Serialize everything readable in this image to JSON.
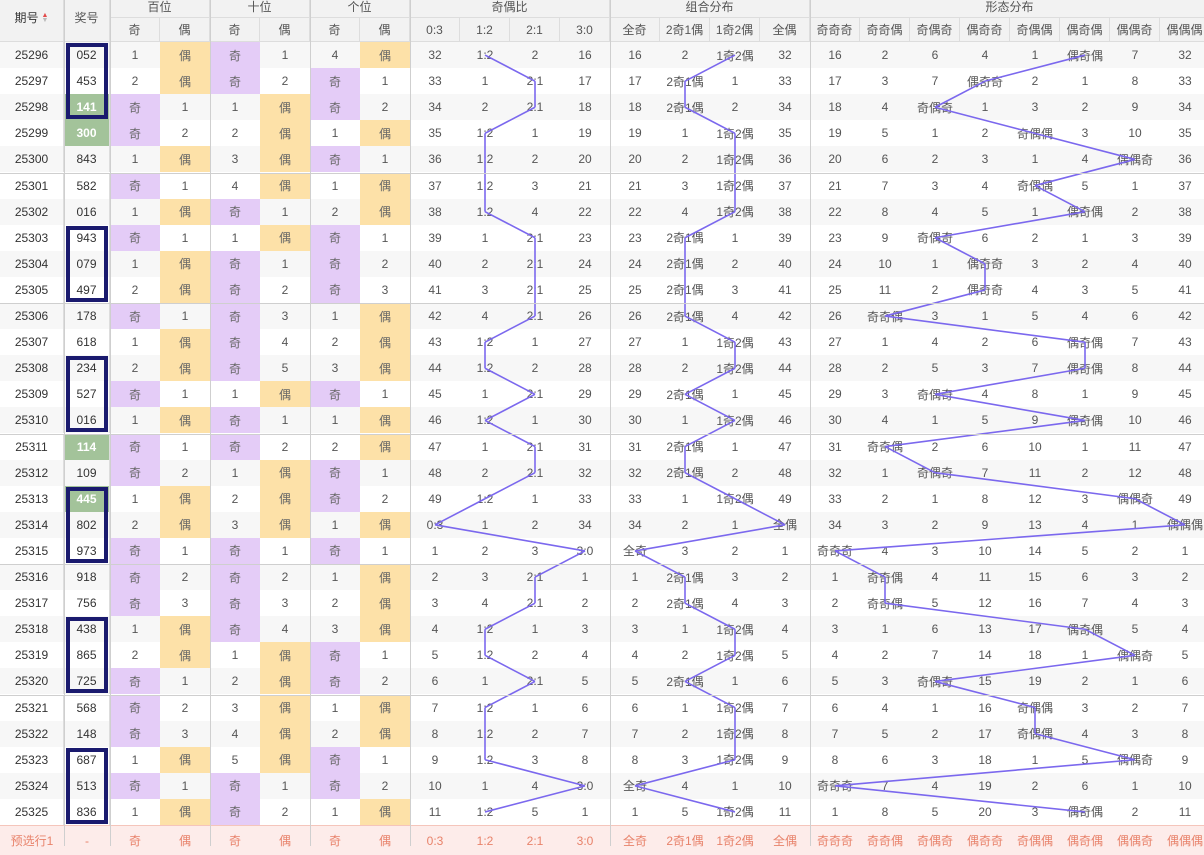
{
  "header": {
    "period": "期号",
    "award": "奖号",
    "sort_icon": "sort-up-down-icon",
    "groups": [
      "百位",
      "十位",
      "个位",
      "奇偶比",
      "组合分布",
      "形态分布"
    ],
    "sub": [
      "奇",
      "偶",
      "奇",
      "偶",
      "奇",
      "偶",
      "0:3",
      "1:2",
      "2:1",
      "3:0",
      "全奇",
      "2奇1偶",
      "1奇2偶",
      "全偶",
      "奇奇奇",
      "奇奇偶",
      "奇偶奇",
      "偶奇奇",
      "奇偶偶",
      "偶奇偶",
      "偶偶奇",
      "偶偶偶"
    ]
  },
  "colors": {
    "hl": "#7b68ee",
    "ji": "#e4ccf7",
    "ou": "#fde1a8",
    "green": "#a3c39a",
    "box": "#1a1a6e",
    "pred": "#e8826a"
  },
  "rows": [
    {
      "p": "25296",
      "n": "052",
      "c": [
        "1",
        "偶",
        "奇",
        "1",
        "4",
        "偶",
        "32",
        "1:2",
        "2",
        "16",
        "16",
        "2",
        "1奇2偶",
        "32",
        "16",
        "2",
        "6",
        "4",
        "1",
        "偶奇偶",
        "7",
        "32"
      ]
    },
    {
      "p": "25297",
      "n": "453",
      "c": [
        "2",
        "偶",
        "奇",
        "2",
        "奇",
        "1",
        "33",
        "1",
        "2:1",
        "17",
        "17",
        "2奇1偶",
        "1",
        "33",
        "17",
        "3",
        "7",
        "偶奇奇",
        "2",
        "1",
        "8",
        "33"
      ]
    },
    {
      "p": "25298",
      "n": "141",
      "c": [
        "奇",
        "1",
        "1",
        "偶",
        "奇",
        "2",
        "34",
        "2",
        "2:1",
        "18",
        "18",
        "2奇1偶",
        "2",
        "34",
        "18",
        "4",
        "奇偶奇",
        "1",
        "3",
        "2",
        "9",
        "34"
      ]
    },
    {
      "p": "25299",
      "n": "300",
      "c": [
        "奇",
        "2",
        "2",
        "偶",
        "1",
        "偶",
        "35",
        "1:2",
        "1",
        "19",
        "19",
        "1",
        "1奇2偶",
        "35",
        "19",
        "5",
        "1",
        "2",
        "奇偶偶",
        "3",
        "10",
        "35"
      ]
    },
    {
      "p": "25300",
      "n": "843",
      "c": [
        "1",
        "偶",
        "3",
        "偶",
        "奇",
        "1",
        "36",
        "1:2",
        "2",
        "20",
        "20",
        "2",
        "1奇2偶",
        "36",
        "20",
        "6",
        "2",
        "3",
        "1",
        "4",
        "偶偶奇",
        "36"
      ]
    },
    {
      "p": "25301",
      "n": "582",
      "c": [
        "奇",
        "1",
        "4",
        "偶",
        "1",
        "偶",
        "37",
        "1:2",
        "3",
        "21",
        "21",
        "3",
        "1奇2偶",
        "37",
        "21",
        "7",
        "3",
        "4",
        "奇偶偶",
        "5",
        "1",
        "37"
      ]
    },
    {
      "p": "25302",
      "n": "016",
      "c": [
        "1",
        "偶",
        "奇",
        "1",
        "2",
        "偶",
        "38",
        "1:2",
        "4",
        "22",
        "22",
        "4",
        "1奇2偶",
        "38",
        "22",
        "8",
        "4",
        "5",
        "1",
        "偶奇偶",
        "2",
        "38"
      ]
    },
    {
      "p": "25303",
      "n": "943",
      "c": [
        "奇",
        "1",
        "1",
        "偶",
        "奇",
        "1",
        "39",
        "1",
        "2:1",
        "23",
        "23",
        "2奇1偶",
        "1",
        "39",
        "23",
        "9",
        "奇偶奇",
        "6",
        "2",
        "1",
        "3",
        "39"
      ]
    },
    {
      "p": "25304",
      "n": "079",
      "c": [
        "1",
        "偶",
        "奇",
        "1",
        "奇",
        "2",
        "40",
        "2",
        "2:1",
        "24",
        "24",
        "2奇1偶",
        "2",
        "40",
        "24",
        "10",
        "1",
        "偶奇奇",
        "3",
        "2",
        "4",
        "40"
      ]
    },
    {
      "p": "25305",
      "n": "497",
      "c": [
        "2",
        "偶",
        "奇",
        "2",
        "奇",
        "3",
        "41",
        "3",
        "2:1",
        "25",
        "25",
        "2奇1偶",
        "3",
        "41",
        "25",
        "11",
        "2",
        "偶奇奇",
        "4",
        "3",
        "5",
        "41"
      ]
    },
    {
      "p": "25306",
      "n": "178",
      "c": [
        "奇",
        "1",
        "奇",
        "3",
        "1",
        "偶",
        "42",
        "4",
        "2:1",
        "26",
        "26",
        "2奇1偶",
        "4",
        "42",
        "26",
        "奇奇偶",
        "3",
        "1",
        "5",
        "4",
        "6",
        "42"
      ]
    },
    {
      "p": "25307",
      "n": "618",
      "c": [
        "1",
        "偶",
        "奇",
        "4",
        "2",
        "偶",
        "43",
        "1:2",
        "1",
        "27",
        "27",
        "1",
        "1奇2偶",
        "43",
        "27",
        "1",
        "4",
        "2",
        "6",
        "偶奇偶",
        "7",
        "43"
      ]
    },
    {
      "p": "25308",
      "n": "234",
      "c": [
        "2",
        "偶",
        "奇",
        "5",
        "3",
        "偶",
        "44",
        "1:2",
        "2",
        "28",
        "28",
        "2",
        "1奇2偶",
        "44",
        "28",
        "2",
        "5",
        "3",
        "7",
        "偶奇偶",
        "8",
        "44"
      ]
    },
    {
      "p": "25309",
      "n": "527",
      "c": [
        "奇",
        "1",
        "1",
        "偶",
        "奇",
        "1",
        "45",
        "1",
        "2:1",
        "29",
        "29",
        "2奇1偶",
        "1",
        "45",
        "29",
        "3",
        "奇偶奇",
        "4",
        "8",
        "1",
        "9",
        "45"
      ]
    },
    {
      "p": "25310",
      "n": "016",
      "c": [
        "1",
        "偶",
        "奇",
        "1",
        "1",
        "偶",
        "46",
        "1:2",
        "1",
        "30",
        "30",
        "1",
        "1奇2偶",
        "46",
        "30",
        "4",
        "1",
        "5",
        "9",
        "偶奇偶",
        "10",
        "46"
      ]
    },
    {
      "p": "25311",
      "n": "114",
      "c": [
        "奇",
        "1",
        "奇",
        "2",
        "2",
        "偶",
        "47",
        "1",
        "2:1",
        "31",
        "31",
        "2奇1偶",
        "1",
        "47",
        "31",
        "奇奇偶",
        "2",
        "6",
        "10",
        "1",
        "11",
        "47"
      ]
    },
    {
      "p": "25312",
      "n": "109",
      "c": [
        "奇",
        "2",
        "1",
        "偶",
        "奇",
        "1",
        "48",
        "2",
        "2:1",
        "32",
        "32",
        "2奇1偶",
        "2",
        "48",
        "32",
        "1",
        "奇偶奇",
        "7",
        "11",
        "2",
        "12",
        "48"
      ]
    },
    {
      "p": "25313",
      "n": "445",
      "c": [
        "1",
        "偶",
        "2",
        "偶",
        "奇",
        "2",
        "49",
        "1:2",
        "1",
        "33",
        "33",
        "1",
        "1奇2偶",
        "49",
        "33",
        "2",
        "1",
        "8",
        "12",
        "3",
        "偶偶奇",
        "49"
      ]
    },
    {
      "p": "25314",
      "n": "802",
      "c": [
        "2",
        "偶",
        "3",
        "偶",
        "1",
        "偶",
        "0:3",
        "1",
        "2",
        "34",
        "34",
        "2",
        "1",
        "全偶",
        "34",
        "3",
        "2",
        "9",
        "13",
        "4",
        "1",
        "偶偶偶"
      ]
    },
    {
      "p": "25315",
      "n": "973",
      "c": [
        "奇",
        "1",
        "奇",
        "1",
        "奇",
        "1",
        "1",
        "2",
        "3",
        "3:0",
        "全奇",
        "3",
        "2",
        "1",
        "奇奇奇",
        "4",
        "3",
        "10",
        "14",
        "5",
        "2",
        "1"
      ]
    },
    {
      "p": "25316",
      "n": "918",
      "c": [
        "奇",
        "2",
        "奇",
        "2",
        "1",
        "偶",
        "2",
        "3",
        "2:1",
        "1",
        "1",
        "2奇1偶",
        "3",
        "2",
        "1",
        "奇奇偶",
        "4",
        "11",
        "15",
        "6",
        "3",
        "2"
      ]
    },
    {
      "p": "25317",
      "n": "756",
      "c": [
        "奇",
        "3",
        "奇",
        "3",
        "2",
        "偶",
        "3",
        "4",
        "2:1",
        "2",
        "2",
        "2奇1偶",
        "4",
        "3",
        "2",
        "奇奇偶",
        "5",
        "12",
        "16",
        "7",
        "4",
        "3"
      ]
    },
    {
      "p": "25318",
      "n": "438",
      "c": [
        "1",
        "偶",
        "奇",
        "4",
        "3",
        "偶",
        "4",
        "1:2",
        "1",
        "3",
        "3",
        "1",
        "1奇2偶",
        "4",
        "3",
        "1",
        "6",
        "13",
        "17",
        "偶奇偶",
        "5",
        "4"
      ]
    },
    {
      "p": "25319",
      "n": "865",
      "c": [
        "2",
        "偶",
        "1",
        "偶",
        "奇",
        "1",
        "5",
        "1:2",
        "2",
        "4",
        "4",
        "2",
        "1奇2偶",
        "5",
        "4",
        "2",
        "7",
        "14",
        "18",
        "1",
        "偶偶奇",
        "5"
      ]
    },
    {
      "p": "25320",
      "n": "725",
      "c": [
        "奇",
        "1",
        "2",
        "偶",
        "奇",
        "2",
        "6",
        "1",
        "2:1",
        "5",
        "5",
        "2奇1偶",
        "1",
        "6",
        "5",
        "3",
        "奇偶奇",
        "15",
        "19",
        "2",
        "1",
        "6"
      ]
    },
    {
      "p": "25321",
      "n": "568",
      "c": [
        "奇",
        "2",
        "3",
        "偶",
        "1",
        "偶",
        "7",
        "1:2",
        "1",
        "6",
        "6",
        "1",
        "1奇2偶",
        "7",
        "6",
        "4",
        "1",
        "16",
        "奇偶偶",
        "3",
        "2",
        "7"
      ]
    },
    {
      "p": "25322",
      "n": "148",
      "c": [
        "奇",
        "3",
        "4",
        "偶",
        "2",
        "偶",
        "8",
        "1:2",
        "2",
        "7",
        "7",
        "2",
        "1奇2偶",
        "8",
        "7",
        "5",
        "2",
        "17",
        "奇偶偶",
        "4",
        "3",
        "8"
      ]
    },
    {
      "p": "25323",
      "n": "687",
      "c": [
        "1",
        "偶",
        "5",
        "偶",
        "奇",
        "1",
        "9",
        "1:2",
        "3",
        "8",
        "8",
        "3",
        "1奇2偶",
        "9",
        "8",
        "6",
        "3",
        "18",
        "1",
        "5",
        "偶偶奇",
        "9"
      ]
    },
    {
      "p": "25324",
      "n": "513",
      "c": [
        "奇",
        "1",
        "奇",
        "1",
        "奇",
        "2",
        "10",
        "1",
        "4",
        "3:0",
        "全奇",
        "4",
        "1",
        "10",
        "奇奇奇",
        "7",
        "4",
        "19",
        "2",
        "6",
        "1",
        "10"
      ]
    },
    {
      "p": "25325",
      "n": "836",
      "c": [
        "1",
        "偶",
        "奇",
        "2",
        "1",
        "偶",
        "11",
        "1:2",
        "5",
        "1",
        "1",
        "5",
        "1奇2偶",
        "11",
        "1",
        "8",
        "5",
        "20",
        "3",
        "偶奇偶",
        "2",
        "11"
      ]
    }
  ],
  "predict": {
    "label": "预选行1",
    "award": "-",
    "cells": [
      "奇",
      "偶",
      "奇",
      "偶",
      "奇",
      "偶",
      "0:3",
      "1:2",
      "2:1",
      "3:0",
      "全奇",
      "2奇1偶",
      "1奇2偶",
      "全偶",
      "奇奇奇",
      "奇奇偶",
      "奇偶奇",
      "偶奇奇",
      "奇偶偶",
      "偶奇偶",
      "偶偶奇",
      "偶偶偶"
    ]
  },
  "green_cells": [
    "25298",
    "25299",
    "25311",
    "25313"
  ],
  "boxed_groups": [
    [
      "25296",
      "25298"
    ],
    [
      "25303",
      "25305"
    ],
    [
      "25308",
      "25310"
    ],
    [
      "25313",
      "25315"
    ],
    [
      "25318",
      "25320"
    ],
    [
      "25323",
      "25325"
    ]
  ]
}
